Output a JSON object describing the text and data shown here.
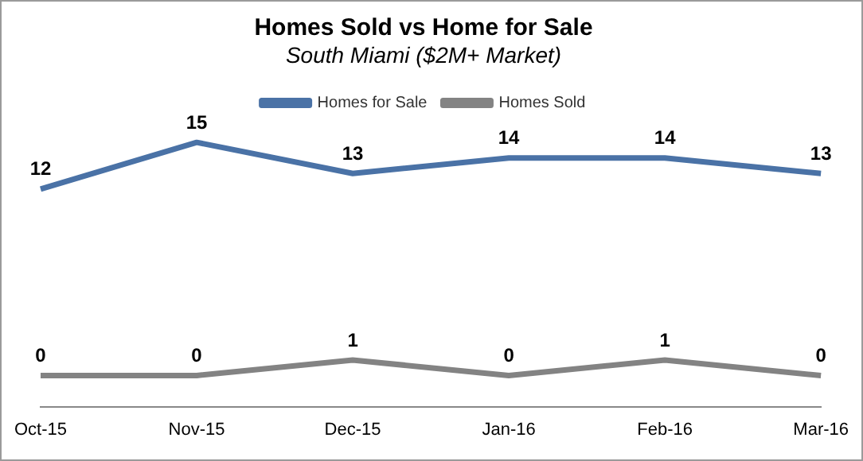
{
  "chart_data": {
    "type": "line",
    "title": "Homes Sold vs Home for Sale",
    "subtitle": "South Miami ($2M+ Market)",
    "categories": [
      "Oct-15",
      "Nov-15",
      "Dec-15",
      "Jan-16",
      "Feb-16",
      "Mar-16"
    ],
    "series": [
      {
        "name": "Homes for Sale",
        "color": "#4a72a6",
        "values": [
          12,
          15,
          13,
          14,
          14,
          13
        ]
      },
      {
        "name": "Homes Sold",
        "color": "#838383",
        "values": [
          0,
          0,
          1,
          0,
          1,
          0
        ]
      }
    ],
    "tick_labels": "x",
    "data_labels": true,
    "legend": "top",
    "grid": false,
    "marker": "none",
    "line_style": "solid"
  }
}
